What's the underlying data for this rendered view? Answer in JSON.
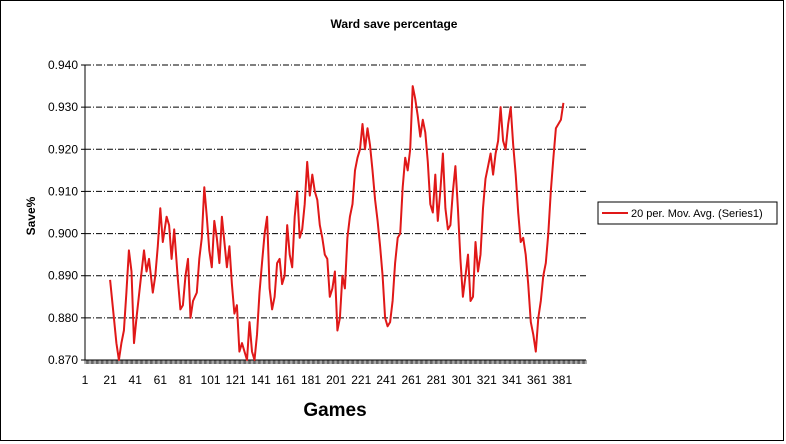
{
  "chart_data": {
    "type": "line",
    "title": "Ward save percentage",
    "xlabel": "Games",
    "ylabel": "Save%",
    "ylim": [
      0.87,
      0.94
    ],
    "xlim": [
      1,
      400
    ],
    "y_ticks": [
      "0.870",
      "0.880",
      "0.890",
      "0.900",
      "0.910",
      "0.920",
      "0.930",
      "0.940"
    ],
    "x_ticks": [
      "1",
      "21",
      "41",
      "61",
      "81",
      "101",
      "121",
      "141",
      "161",
      "181",
      "201",
      "221",
      "241",
      "261",
      "281",
      "301",
      "321",
      "341",
      "361",
      "381"
    ],
    "grid": "horizontal dash-dot",
    "legend": "right",
    "series": [
      {
        "name": "20 per. Mov. Avg. (Series1)",
        "color": "#e01818",
        "points": [
          [
            21,
            0.889
          ],
          [
            24,
            0.88
          ],
          [
            26,
            0.874
          ],
          [
            28,
            0.87
          ],
          [
            30,
            0.874
          ],
          [
            32,
            0.877
          ],
          [
            34,
            0.886
          ],
          [
            36,
            0.896
          ],
          [
            38,
            0.891
          ],
          [
            40,
            0.874
          ],
          [
            42,
            0.88
          ],
          [
            45,
            0.888
          ],
          [
            48,
            0.896
          ],
          [
            50,
            0.891
          ],
          [
            52,
            0.894
          ],
          [
            55,
            0.886
          ],
          [
            57,
            0.89
          ],
          [
            59,
            0.897
          ],
          [
            61,
            0.906
          ],
          [
            63,
            0.898
          ],
          [
            66,
            0.904
          ],
          [
            68,
            0.902
          ],
          [
            70,
            0.894
          ],
          [
            72,
            0.901
          ],
          [
            75,
            0.889
          ],
          [
            77,
            0.882
          ],
          [
            79,
            0.883
          ],
          [
            81,
            0.89
          ],
          [
            83,
            0.894
          ],
          [
            85,
            0.88
          ],
          [
            87,
            0.884
          ],
          [
            90,
            0.886
          ],
          [
            92,
            0.894
          ],
          [
            94,
            0.899
          ],
          [
            96,
            0.911
          ],
          [
            98,
            0.904
          ],
          [
            100,
            0.896
          ],
          [
            102,
            0.892
          ],
          [
            104,
            0.903
          ],
          [
            106,
            0.899
          ],
          [
            108,
            0.893
          ],
          [
            110,
            0.904
          ],
          [
            112,
            0.898
          ],
          [
            114,
            0.892
          ],
          [
            116,
            0.897
          ],
          [
            118,
            0.888
          ],
          [
            120,
            0.881
          ],
          [
            122,
            0.883
          ],
          [
            124,
            0.872
          ],
          [
            126,
            0.874
          ],
          [
            128,
            0.872
          ],
          [
            130,
            0.87
          ],
          [
            132,
            0.879
          ],
          [
            134,
            0.872
          ],
          [
            136,
            0.87
          ],
          [
            138,
            0.876
          ],
          [
            140,
            0.886
          ],
          [
            142,
            0.893
          ],
          [
            144,
            0.9
          ],
          [
            146,
            0.904
          ],
          [
            148,
            0.887
          ],
          [
            150,
            0.882
          ],
          [
            152,
            0.885
          ],
          [
            154,
            0.893
          ],
          [
            156,
            0.894
          ],
          [
            158,
            0.888
          ],
          [
            160,
            0.89
          ],
          [
            162,
            0.902
          ],
          [
            164,
            0.895
          ],
          [
            166,
            0.892
          ],
          [
            168,
            0.904
          ],
          [
            170,
            0.91
          ],
          [
            172,
            0.899
          ],
          [
            174,
            0.901
          ],
          [
            176,
            0.907
          ],
          [
            178,
            0.917
          ],
          [
            180,
            0.909
          ],
          [
            182,
            0.914
          ],
          [
            184,
            0.91
          ],
          [
            186,
            0.908
          ],
          [
            188,
            0.902
          ],
          [
            190,
            0.899
          ],
          [
            192,
            0.895
          ],
          [
            194,
            0.894
          ],
          [
            196,
            0.885
          ],
          [
            198,
            0.887
          ],
          [
            200,
            0.891
          ],
          [
            202,
            0.877
          ],
          [
            204,
            0.88
          ],
          [
            206,
            0.89
          ],
          [
            208,
            0.887
          ],
          [
            210,
            0.899
          ],
          [
            212,
            0.904
          ],
          [
            214,
            0.907
          ],
          [
            216,
            0.915
          ],
          [
            218,
            0.918
          ],
          [
            220,
            0.92
          ],
          [
            222,
            0.926
          ],
          [
            224,
            0.92
          ],
          [
            226,
            0.925
          ],
          [
            228,
            0.921
          ],
          [
            230,
            0.915
          ],
          [
            232,
            0.908
          ],
          [
            234,
            0.903
          ],
          [
            236,
            0.897
          ],
          [
            238,
            0.89
          ],
          [
            240,
            0.88
          ],
          [
            242,
            0.878
          ],
          [
            244,
            0.879
          ],
          [
            246,
            0.884
          ],
          [
            248,
            0.893
          ],
          [
            250,
            0.899
          ],
          [
            252,
            0.9
          ],
          [
            254,
            0.911
          ],
          [
            256,
            0.918
          ],
          [
            258,
            0.915
          ],
          [
            260,
            0.92
          ],
          [
            262,
            0.935
          ],
          [
            264,
            0.932
          ],
          [
            266,
            0.928
          ],
          [
            268,
            0.923
          ],
          [
            270,
            0.927
          ],
          [
            272,
            0.924
          ],
          [
            274,
            0.917
          ],
          [
            276,
            0.907
          ],
          [
            278,
            0.905
          ],
          [
            280,
            0.914
          ],
          [
            282,
            0.903
          ],
          [
            284,
            0.91
          ],
          [
            286,
            0.919
          ],
          [
            288,
            0.906
          ],
          [
            290,
            0.901
          ],
          [
            292,
            0.902
          ],
          [
            294,
            0.91
          ],
          [
            296,
            0.916
          ],
          [
            298,
            0.906
          ],
          [
            300,
            0.894
          ],
          [
            302,
            0.885
          ],
          [
            304,
            0.89
          ],
          [
            306,
            0.895
          ],
          [
            308,
            0.884
          ],
          [
            310,
            0.885
          ],
          [
            312,
            0.898
          ],
          [
            314,
            0.891
          ],
          [
            316,
            0.895
          ],
          [
            318,
            0.906
          ],
          [
            320,
            0.913
          ],
          [
            322,
            0.916
          ],
          [
            324,
            0.919
          ],
          [
            326,
            0.914
          ],
          [
            328,
            0.919
          ],
          [
            330,
            0.922
          ],
          [
            332,
            0.93
          ],
          [
            334,
            0.922
          ],
          [
            336,
            0.92
          ],
          [
            338,
            0.926
          ],
          [
            340,
            0.93
          ],
          [
            342,
            0.921
          ],
          [
            344,
            0.914
          ],
          [
            346,
            0.905
          ],
          [
            348,
            0.898
          ],
          [
            350,
            0.899
          ],
          [
            352,
            0.895
          ],
          [
            354,
            0.888
          ],
          [
            356,
            0.879
          ],
          [
            358,
            0.876
          ],
          [
            360,
            0.872
          ],
          [
            362,
            0.88
          ],
          [
            364,
            0.884
          ],
          [
            366,
            0.89
          ],
          [
            368,
            0.893
          ],
          [
            370,
            0.9
          ],
          [
            372,
            0.91
          ],
          [
            374,
            0.918
          ],
          [
            376,
            0.925
          ],
          [
            378,
            0.926
          ],
          [
            380,
            0.927
          ],
          [
            382,
            0.931
          ]
        ]
      }
    ]
  }
}
